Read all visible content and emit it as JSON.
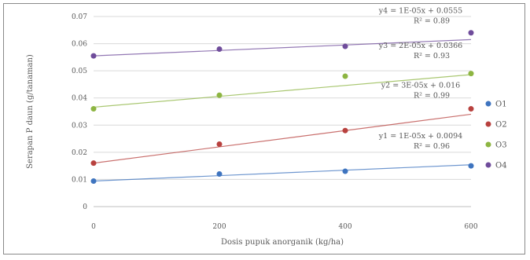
{
  "chart_data": {
    "type": "scatter",
    "xlabel": "Dosis pupuk anorganik (kg/ha)",
    "ylabel": "Serapan P daun (g/tanaman)",
    "xlim": [
      0,
      600
    ],
    "ylim": [
      0,
      0.07
    ],
    "x_ticks": [
      "0",
      "200",
      "400",
      "600"
    ],
    "y_ticks": [
      "0",
      "0.01",
      "0.02",
      "0.03",
      "0.04",
      "0.05",
      "0.06",
      "0.07"
    ],
    "grid": "horizontal",
    "legend_position": "right",
    "x": [
      0,
      200,
      400,
      600
    ],
    "series": [
      {
        "name": "O1",
        "color": "#3e74bf",
        "values": [
          0.0094,
          0.012,
          0.013,
          0.015
        ],
        "trendline": {
          "slope": 1e-05,
          "intercept": 0.0094
        },
        "equation": "y1 = 1E-05x + 0.0094",
        "r2": "R² = 0.96"
      },
      {
        "name": "O2",
        "color": "#b8413e",
        "values": [
          0.016,
          0.023,
          0.028,
          0.036
        ],
        "trendline": {
          "slope": 3e-05,
          "intercept": 0.016
        },
        "equation": "y2 = 3E-05x + 0.016",
        "r2": "R² = 0.99"
      },
      {
        "name": "O3",
        "color": "#8db542",
        "values": [
          0.036,
          0.041,
          0.048,
          0.049
        ],
        "trendline": {
          "slope": 2e-05,
          "intercept": 0.0366
        },
        "equation": "y3 = 2E-05x + 0.0366",
        "r2": "R² = 0.93"
      },
      {
        "name": "O4",
        "color": "#6f4c9b",
        "values": [
          0.0555,
          0.058,
          0.059,
          0.064
        ],
        "trendline": {
          "slope": 1e-05,
          "intercept": 0.0555
        },
        "equation": "y4 = 1E-05x + 0.0555",
        "r2": "R² = 0.89"
      }
    ]
  }
}
